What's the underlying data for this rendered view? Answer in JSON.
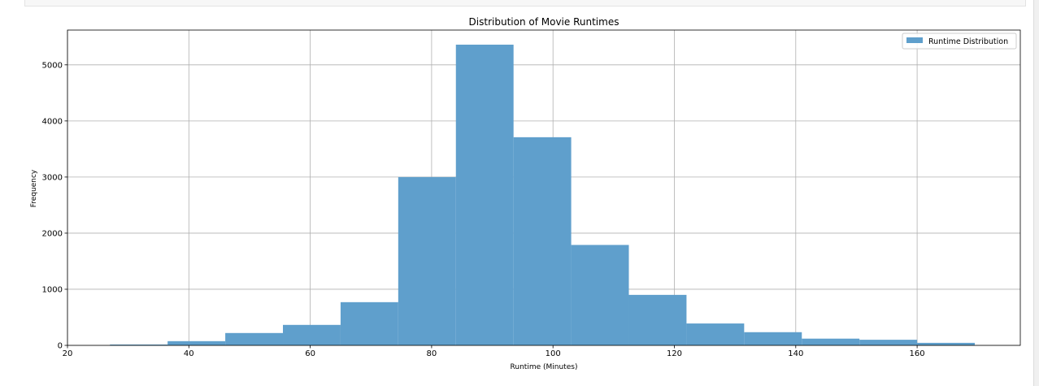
{
  "chart_data": {
    "type": "bar",
    "title": "Distribution of Movie Runtimes",
    "xlabel": "Runtime (Minutes)",
    "ylabel": "Frequency",
    "xlim": [
      20,
      177
    ],
    "ylim": [
      0,
      5620
    ],
    "x_ticks": [
      20,
      40,
      60,
      80,
      100,
      120,
      140,
      160
    ],
    "y_ticks": [
      0,
      1000,
      2000,
      3000,
      4000,
      5000
    ],
    "grid": true,
    "legend_position": "top-right",
    "bar_color": "#5f9fcc",
    "series": [
      {
        "name": "Runtime Distribution",
        "bins": [
          {
            "x0": 27.0,
            "x1": 36.5,
            "value": 15
          },
          {
            "x0": 36.5,
            "x1": 46.0,
            "value": 75
          },
          {
            "x0": 46.0,
            "x1": 55.5,
            "value": 220
          },
          {
            "x0": 55.5,
            "x1": 65.0,
            "value": 365
          },
          {
            "x0": 65.0,
            "x1": 74.5,
            "value": 770
          },
          {
            "x0": 74.5,
            "x1": 84.0,
            "value": 3000
          },
          {
            "x0": 84.0,
            "x1": 93.5,
            "value": 5360
          },
          {
            "x0": 93.5,
            "x1": 103.0,
            "value": 3710
          },
          {
            "x0": 103.0,
            "x1": 112.5,
            "value": 1790
          },
          {
            "x0": 112.5,
            "x1": 122.0,
            "value": 900
          },
          {
            "x0": 122.0,
            "x1": 131.5,
            "value": 390
          },
          {
            "x0": 131.5,
            "x1": 141.0,
            "value": 235
          },
          {
            "x0": 141.0,
            "x1": 150.5,
            "value": 120
          },
          {
            "x0": 150.5,
            "x1": 160.0,
            "value": 100
          },
          {
            "x0": 160.0,
            "x1": 169.5,
            "value": 45
          }
        ]
      }
    ]
  }
}
